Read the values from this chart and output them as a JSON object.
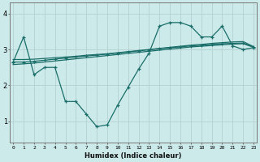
{
  "xlabel": "Humidex (Indice chaleur)",
  "bg_color": "#cdeaea",
  "grid_color": "#b8d4d4",
  "line_color": "#1a6e6a",
  "x_ticks": [
    0,
    1,
    2,
    3,
    4,
    5,
    6,
    7,
    8,
    9,
    10,
    11,
    12,
    13,
    14,
    15,
    16,
    17,
    18,
    19,
    20,
    21,
    22,
    23
  ],
  "y_ticks": [
    1,
    2,
    3,
    4
  ],
  "ylim": [
    0.4,
    4.3
  ],
  "xlim": [
    -0.3,
    23.3
  ],
  "line1_x": [
    0,
    1,
    2,
    3,
    4,
    5,
    6,
    7,
    8,
    9,
    10,
    11,
    12,
    13,
    14,
    15,
    16,
    17,
    18,
    19,
    20,
    21,
    22,
    23
  ],
  "line1_y": [
    2.65,
    3.35,
    2.3,
    2.5,
    2.5,
    1.55,
    1.55,
    1.2,
    0.85,
    0.9,
    1.45,
    1.95,
    2.45,
    2.9,
    3.65,
    3.75,
    3.75,
    3.65,
    3.35,
    3.35,
    3.65,
    3.1,
    3.0,
    3.05
  ],
  "line2_x": [
    0,
    1,
    2,
    3,
    4,
    5,
    6,
    7,
    8,
    9,
    10,
    11,
    12,
    13,
    14,
    15,
    16,
    17,
    18,
    19,
    20,
    21,
    22,
    23
  ],
  "line2_y": [
    2.65,
    2.65,
    2.67,
    2.7,
    2.73,
    2.76,
    2.79,
    2.82,
    2.84,
    2.87,
    2.9,
    2.93,
    2.96,
    2.99,
    3.02,
    3.05,
    3.07,
    3.1,
    3.12,
    3.14,
    3.16,
    3.17,
    3.18,
    3.07
  ],
  "line3_x": [
    0,
    1,
    2,
    3,
    4,
    5,
    6,
    7,
    8,
    9,
    10,
    11,
    12,
    13,
    14,
    15,
    16,
    17,
    18,
    19,
    20,
    21,
    22,
    23
  ],
  "line3_y": [
    2.58,
    2.6,
    2.62,
    2.65,
    2.68,
    2.71,
    2.74,
    2.77,
    2.8,
    2.83,
    2.86,
    2.89,
    2.92,
    2.95,
    2.98,
    3.01,
    3.04,
    3.07,
    3.09,
    3.11,
    3.13,
    3.15,
    3.16,
    3.06
  ],
  "line4_x": [
    0,
    1,
    2,
    3,
    4,
    5,
    6,
    7,
    8,
    9,
    10,
    11,
    12,
    13,
    14,
    15,
    16,
    17,
    18,
    19,
    20,
    21,
    22,
    23
  ],
  "line4_y": [
    2.72,
    2.72,
    2.73,
    2.75,
    2.77,
    2.79,
    2.81,
    2.84,
    2.86,
    2.88,
    2.91,
    2.94,
    2.97,
    3.0,
    3.03,
    3.06,
    3.09,
    3.12,
    3.14,
    3.17,
    3.19,
    3.21,
    3.22,
    3.08
  ]
}
